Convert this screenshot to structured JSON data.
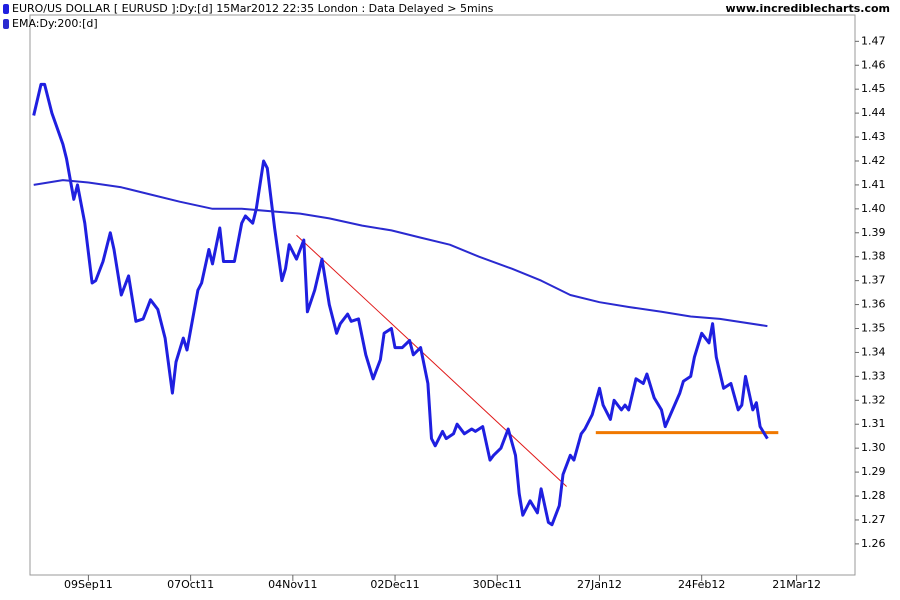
{
  "chart_data": {
    "type": "line",
    "source": "www.incrediblecharts.com",
    "xlim": [
      "2011-08-24",
      "2012-04-06"
    ],
    "ylim": [
      1.247,
      1.481
    ],
    "xticks": [
      {
        "value": "2011-09-09",
        "label": "09Sep11"
      },
      {
        "value": "2011-10-07",
        "label": "07Oct11"
      },
      {
        "value": "2011-11-04",
        "label": "04Nov11"
      },
      {
        "value": "2011-12-02",
        "label": "02Dec11"
      },
      {
        "value": "2011-12-30",
        "label": "30Dec11"
      },
      {
        "value": "2012-01-27",
        "label": "27Jan12"
      },
      {
        "value": "2012-02-24",
        "label": "24Feb12"
      },
      {
        "value": "2012-03-21",
        "label": "21Mar12"
      }
    ],
    "yticks": [
      1.26,
      1.27,
      1.28,
      1.29,
      {
        "value": 1.3,
        "label": "1.30"
      },
      1.31,
      1.32,
      1.33,
      1.34,
      1.35,
      1.36,
      1.37,
      1.38,
      1.39,
      {
        "value": 1.4,
        "label": "1.40"
      },
      1.41,
      1.42,
      1.43,
      1.44,
      1.45,
      1.46,
      1.47
    ],
    "series": [
      {
        "name": "EURO/US DOLLAR [ EURUSD ]:Dy:[d]  15Mar2012 22:35 London : Data Delayed > 5mins",
        "color": "#1f1fe0",
        "width": 3,
        "x": [
          "2011-08-25",
          "2011-08-27",
          "2011-08-28",
          "2011-08-30",
          "2011-09-02",
          "2011-09-03",
          "2011-09-05",
          "2011-09-06",
          "2011-09-08",
          "2011-09-10",
          "2011-09-11",
          "2011-09-13",
          "2011-09-15",
          "2011-09-16",
          "2011-09-18",
          "2011-09-20",
          "2011-09-22",
          "2011-09-24",
          "2011-09-26",
          "2011-09-28",
          "2011-09-30",
          "2011-10-02",
          "2011-10-03",
          "2011-10-05",
          "2011-10-06",
          "2011-10-09",
          "2011-10-10",
          "2011-10-12",
          "2011-10-13",
          "2011-10-15",
          "2011-10-16",
          "2011-10-19",
          "2011-10-21",
          "2011-10-22",
          "2011-10-24",
          "2011-10-25",
          "2011-10-27",
          "2011-10-28",
          "2011-10-30",
          "2011-11-01",
          "2011-11-02",
          "2011-11-03",
          "2011-11-05",
          "2011-11-07",
          "2011-11-08",
          "2011-11-10",
          "2011-11-12",
          "2011-11-14",
          "2011-11-16",
          "2011-11-17",
          "2011-11-19",
          "2011-11-20",
          "2011-11-22",
          "2011-11-24",
          "2011-11-26",
          "2011-11-28",
          "2011-11-29",
          "2011-12-01",
          "2011-12-02",
          "2011-12-04",
          "2011-12-06",
          "2011-12-07",
          "2011-12-09",
          "2011-12-11",
          "2011-12-12",
          "2011-12-13",
          "2011-12-15",
          "2011-12-16",
          "2011-12-18",
          "2011-12-19",
          "2011-12-21",
          "2011-12-23",
          "2011-12-24",
          "2011-12-26",
          "2011-12-28",
          "2011-12-29",
          "2011-12-31",
          "2012-01-02",
          "2012-01-04",
          "2012-01-05",
          "2012-01-06",
          "2012-01-08",
          "2012-01-10",
          "2012-01-11",
          "2012-01-13",
          "2012-01-14",
          "2012-01-16",
          "2012-01-17",
          "2012-01-19",
          "2012-01-20",
          "2012-01-22",
          "2012-01-23",
          "2012-01-25",
          "2012-01-27",
          "2012-01-28",
          "2012-01-30",
          "2012-01-31",
          "2012-02-02",
          "2012-02-03",
          "2012-02-04",
          "2012-02-06",
          "2012-02-08",
          "2012-02-09",
          "2012-02-11",
          "2012-02-13",
          "2012-02-14",
          "2012-02-16",
          "2012-02-18",
          "2012-02-19",
          "2012-02-21",
          "2012-02-22",
          "2012-02-24",
          "2012-02-26",
          "2012-02-27",
          "2012-02-28",
          "2012-03-01",
          "2012-03-03",
          "2012-03-05",
          "2012-03-06",
          "2012-03-07",
          "2012-03-09",
          "2012-03-10",
          "2012-03-11",
          "2012-03-13"
        ],
        "values": [
          1.439,
          1.452,
          1.452,
          1.44,
          1.427,
          1.421,
          1.404,
          1.41,
          1.394,
          1.369,
          1.37,
          1.378,
          1.39,
          1.383,
          1.364,
          1.372,
          1.353,
          1.354,
          1.362,
          1.358,
          1.346,
          1.323,
          1.336,
          1.346,
          1.341,
          1.366,
          1.369,
          1.383,
          1.377,
          1.392,
          1.378,
          1.378,
          1.394,
          1.397,
          1.394,
          1.4,
          1.42,
          1.417,
          1.392,
          1.37,
          1.375,
          1.385,
          1.379,
          1.387,
          1.357,
          1.366,
          1.379,
          1.36,
          1.348,
          1.352,
          1.356,
          1.353,
          1.354,
          1.339,
          1.329,
          1.337,
          1.348,
          1.35,
          1.342,
          1.342,
          1.345,
          1.339,
          1.342,
          1.327,
          1.304,
          1.301,
          1.307,
          1.304,
          1.306,
          1.31,
          1.306,
          1.308,
          1.307,
          1.309,
          1.295,
          1.297,
          1.3,
          1.308,
          1.297,
          1.281,
          1.272,
          1.278,
          1.273,
          1.283,
          1.269,
          1.268,
          1.276,
          1.289,
          1.297,
          1.295,
          1.306,
          1.308,
          1.314,
          1.325,
          1.318,
          1.312,
          1.32,
          1.316,
          1.318,
          1.316,
          1.329,
          1.327,
          1.331,
          1.321,
          1.316,
          1.309,
          1.316,
          1.323,
          1.328,
          1.33,
          1.338,
          1.348,
          1.344,
          1.352,
          1.338,
          1.325,
          1.327,
          1.316,
          1.318,
          1.33,
          1.316,
          1.319,
          1.309,
          1.304
        ]
      },
      {
        "name": "EMA:Dy:200:[d]",
        "color": "#2a2ad0",
        "width": 2,
        "x": [
          "2011-08-25",
          "2011-09-02",
          "2011-09-09",
          "2011-09-18",
          "2011-09-26",
          "2011-10-04",
          "2011-10-13",
          "2011-10-21",
          "2011-10-29",
          "2011-11-06",
          "2011-11-14",
          "2011-11-23",
          "2011-12-01",
          "2011-12-09",
          "2011-12-17",
          "2011-12-25",
          "2012-01-03",
          "2012-01-11",
          "2012-01-19",
          "2012-01-27",
          "2012-02-04",
          "2012-02-13",
          "2012-02-21",
          "2012-02-29",
          "2012-03-13"
        ],
        "values": [
          1.41,
          1.412,
          1.411,
          1.409,
          1.406,
          1.403,
          1.4,
          1.4,
          1.399,
          1.398,
          1.396,
          1.393,
          1.391,
          1.388,
          1.385,
          1.38,
          1.375,
          1.37,
          1.364,
          1.361,
          1.359,
          1.357,
          1.355,
          1.354,
          1.351
        ]
      }
    ],
    "lines": [
      {
        "color": "#e01818",
        "width": 1,
        "x": [
          "2011-11-05",
          "2012-01-18"
        ],
        "values": [
          1.389,
          1.284
        ]
      },
      {
        "color": "#f07800",
        "width": 3,
        "x": [
          "2012-01-26",
          "2012-03-16"
        ],
        "values": [
          1.3065,
          1.3065
        ]
      }
    ]
  }
}
